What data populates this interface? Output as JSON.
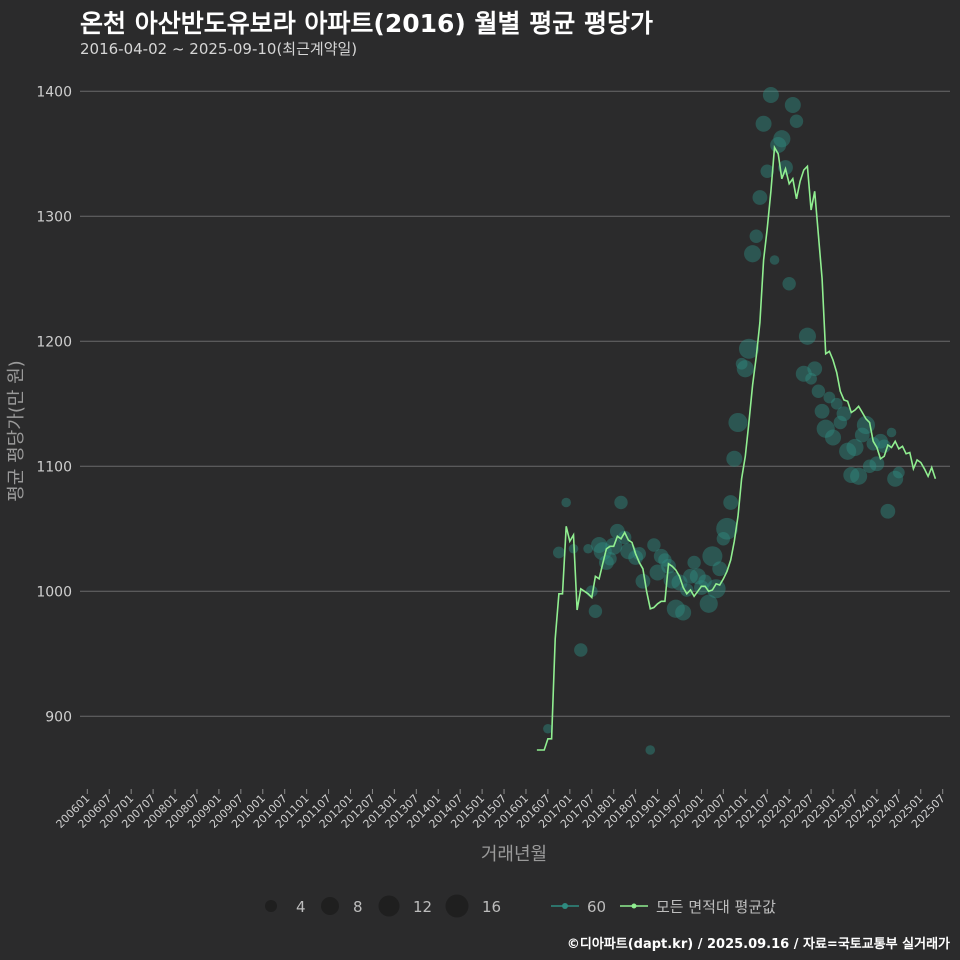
{
  "header": {
    "title": "온천 아산반도유보라 아파트(2016) 월별 평균 평당가",
    "subtitle": "2016-04-02 ~ 2025-09-10(최근계약일)"
  },
  "footer": {
    "credit": "©디아파트(dapt.kr) / 2025.09.16 / 자료=국토교통부 실거래가"
  },
  "colors": {
    "background": "#2b2b2c",
    "grid": "#6b6b6b",
    "line": "#90ee90",
    "bubble": "#2e8b80",
    "text": "#cfcfcf"
  },
  "legend": {
    "size_title": "",
    "sizes": [
      {
        "value": 4,
        "label": "4"
      },
      {
        "value": 8,
        "label": "8"
      },
      {
        "value": 12,
        "label": "12"
      },
      {
        "value": 16,
        "label": "16"
      }
    ],
    "series_area": "60",
    "series_avg": "모든 면적대 평균값"
  },
  "chart_data": {
    "type": "line",
    "title": "온천 아산반도유보라 아파트(2016) 월별 평균 평당가",
    "xlabel": "거래년월",
    "ylabel": "평균 평당가(만 원)",
    "ylim": [
      845,
      1425
    ],
    "yticks": [
      900,
      1000,
      1100,
      1200,
      1300,
      1400
    ],
    "xlim": [
      -2,
      236
    ],
    "xticks": [
      "200601",
      "200607",
      "200701",
      "200707",
      "200801",
      "200807",
      "200901",
      "200907",
      "201001",
      "201007",
      "201101",
      "201107",
      "201201",
      "201207",
      "201301",
      "201307",
      "201401",
      "201407",
      "201501",
      "201507",
      "201601",
      "201607",
      "201701",
      "201707",
      "201801",
      "201807",
      "201901",
      "201907",
      "202001",
      "202007",
      "202101",
      "202107",
      "202201",
      "202207",
      "202301",
      "202307",
      "202401",
      "202407",
      "202501",
      "202507"
    ],
    "series": [
      {
        "name": "모든 면적대 평균값",
        "type": "line",
        "points": [
          [
            123,
            873
          ],
          [
            124,
            873
          ],
          [
            125,
            873
          ],
          [
            126,
            882
          ],
          [
            127,
            882
          ],
          [
            128,
            962
          ],
          [
            129,
            998
          ],
          [
            130,
            998
          ],
          [
            131,
            1052
          ],
          [
            132,
            1040
          ],
          [
            133,
            1045
          ],
          [
            134,
            985
          ],
          [
            135,
            1002
          ],
          [
            136,
            1000
          ],
          [
            137,
            998
          ],
          [
            138,
            995
          ],
          [
            139,
            1012
          ],
          [
            140,
            1010
          ],
          [
            141,
            1022
          ],
          [
            142,
            1034
          ],
          [
            143,
            1036
          ],
          [
            144,
            1036
          ],
          [
            145,
            1044
          ],
          [
            146,
            1042
          ],
          [
            147,
            1047
          ],
          [
            148,
            1041
          ],
          [
            149,
            1039
          ],
          [
            150,
            1030
          ],
          [
            151,
            1023
          ],
          [
            152,
            1018
          ],
          [
            153,
            1000
          ],
          [
            154,
            986
          ],
          [
            155,
            987
          ],
          [
            156,
            990
          ],
          [
            157,
            992
          ],
          [
            158,
            992
          ],
          [
            159,
            1022
          ],
          [
            160,
            1020
          ],
          [
            161,
            1017
          ],
          [
            162,
            1012
          ],
          [
            163,
            1003
          ],
          [
            164,
            998
          ],
          [
            165,
            1001
          ],
          [
            166,
            996
          ],
          [
            167,
            1000
          ],
          [
            168,
            1004
          ],
          [
            169,
            1004
          ],
          [
            170,
            1000
          ],
          [
            171,
            1001
          ],
          [
            172,
            1006
          ],
          [
            173,
            1005
          ],
          [
            174,
            1010
          ],
          [
            175,
            1016
          ],
          [
            176,
            1025
          ],
          [
            177,
            1040
          ],
          [
            178,
            1060
          ],
          [
            179,
            1090
          ],
          [
            180,
            1108
          ],
          [
            181,
            1135
          ],
          [
            182,
            1165
          ],
          [
            183,
            1188
          ],
          [
            184,
            1215
          ],
          [
            185,
            1265
          ],
          [
            186,
            1290
          ],
          [
            187,
            1320
          ],
          [
            188,
            1355
          ],
          [
            189,
            1350
          ],
          [
            190,
            1330
          ],
          [
            191,
            1338
          ],
          [
            192,
            1326
          ],
          [
            193,
            1330
          ],
          [
            194,
            1314
          ],
          [
            195,
            1328
          ],
          [
            196,
            1337
          ],
          [
            197,
            1340
          ],
          [
            198,
            1305
          ],
          [
            199,
            1320
          ],
          [
            200,
            1285
          ],
          [
            201,
            1250
          ],
          [
            202,
            1190
          ],
          [
            203,
            1192
          ],
          [
            204,
            1185
          ],
          [
            205,
            1175
          ],
          [
            206,
            1160
          ],
          [
            207,
            1153
          ],
          [
            208,
            1152
          ],
          [
            209,
            1143
          ],
          [
            210,
            1145
          ],
          [
            211,
            1148
          ],
          [
            212,
            1143
          ],
          [
            213,
            1138
          ],
          [
            214,
            1135
          ],
          [
            215,
            1120
          ],
          [
            216,
            1115
          ],
          [
            217,
            1106
          ],
          [
            218,
            1108
          ],
          [
            219,
            1117
          ],
          [
            220,
            1115
          ],
          [
            221,
            1120
          ],
          [
            222,
            1114
          ],
          [
            223,
            1116
          ],
          [
            224,
            1110
          ],
          [
            225,
            1111
          ],
          [
            226,
            1098
          ],
          [
            227,
            1105
          ],
          [
            228,
            1103
          ],
          [
            229,
            1098
          ],
          [
            230,
            1092
          ],
          [
            231,
            1099
          ],
          [
            232,
            1090
          ]
        ]
      },
      {
        "name": "60",
        "type": "scatter",
        "points": [
          [
            126,
            890,
            1
          ],
          [
            129,
            1031,
            2
          ],
          [
            131,
            1071,
            1
          ],
          [
            133,
            1034,
            1
          ],
          [
            135,
            953,
            3
          ],
          [
            137,
            1034,
            1
          ],
          [
            138,
            1000,
            2
          ],
          [
            139,
            984,
            3
          ],
          [
            140,
            1037,
            5
          ],
          [
            141,
            1032,
            7
          ],
          [
            142,
            1023,
            4
          ],
          [
            143,
            1026,
            3
          ],
          [
            144,
            1036,
            6
          ],
          [
            145,
            1048,
            4
          ],
          [
            146,
            1071,
            3
          ],
          [
            147,
            1043,
            3
          ],
          [
            148,
            1032,
            5
          ],
          [
            150,
            1027,
            4
          ],
          [
            151,
            1030,
            3
          ],
          [
            152,
            1008,
            4
          ],
          [
            154,
            873,
            1
          ],
          [
            155,
            1037,
            3
          ],
          [
            156,
            1015,
            5
          ],
          [
            157,
            1028,
            4
          ],
          [
            158,
            1025,
            3
          ],
          [
            159,
            1020,
            4
          ],
          [
            160,
            1009,
            6
          ],
          [
            161,
            986,
            7
          ],
          [
            162,
            1007,
            5
          ],
          [
            163,
            983,
            5
          ],
          [
            164,
            1001,
            3
          ],
          [
            165,
            1012,
            4
          ],
          [
            166,
            1023,
            3
          ],
          [
            167,
            1012,
            5
          ],
          [
            168,
            1003,
            4
          ],
          [
            169,
            1008,
            3
          ],
          [
            170,
            990,
            7
          ],
          [
            171,
            1028,
            9
          ],
          [
            172,
            1002,
            8
          ],
          [
            173,
            1018,
            4
          ],
          [
            174,
            1042,
            3
          ],
          [
            175,
            1050,
            11
          ],
          [
            176,
            1071,
            4
          ],
          [
            177,
            1106,
            5
          ],
          [
            178,
            1135,
            8
          ],
          [
            179,
            1182,
            2
          ],
          [
            180,
            1178,
            6
          ],
          [
            181,
            1194,
            9
          ],
          [
            182,
            1270,
            6
          ],
          [
            183,
            1284,
            3
          ],
          [
            184,
            1315,
            4
          ],
          [
            185,
            1374,
            5
          ],
          [
            186,
            1336,
            3
          ],
          [
            187,
            1397,
            5
          ],
          [
            188,
            1265,
            1
          ],
          [
            189,
            1357,
            5
          ],
          [
            190,
            1362,
            6
          ],
          [
            191,
            1339,
            4
          ],
          [
            192,
            1246,
            3
          ],
          [
            193,
            1389,
            5
          ],
          [
            194,
            1376,
            3
          ],
          [
            196,
            1174,
            5
          ],
          [
            197,
            1204,
            6
          ],
          [
            198,
            1170,
            2
          ],
          [
            199,
            1178,
            4
          ],
          [
            200,
            1160,
            3
          ],
          [
            201,
            1144,
            4
          ],
          [
            202,
            1130,
            7
          ],
          [
            203,
            1155,
            2
          ],
          [
            204,
            1123,
            5
          ],
          [
            205,
            1150,
            2
          ],
          [
            206,
            1135,
            3
          ],
          [
            207,
            1142,
            4
          ],
          [
            208,
            1112,
            6
          ],
          [
            209,
            1093,
            5
          ],
          [
            210,
            1115,
            6
          ],
          [
            211,
            1092,
            6
          ],
          [
            212,
            1125,
            4
          ],
          [
            213,
            1133,
            7
          ],
          [
            214,
            1100,
            3
          ],
          [
            215,
            1118,
            3
          ],
          [
            216,
            1102,
            4
          ],
          [
            217,
            1120,
            4
          ],
          [
            218,
            1116,
            3
          ],
          [
            219,
            1064,
            4
          ],
          [
            220,
            1127,
            1
          ],
          [
            221,
            1090,
            5
          ],
          [
            222,
            1095,
            2
          ]
        ]
      }
    ]
  }
}
